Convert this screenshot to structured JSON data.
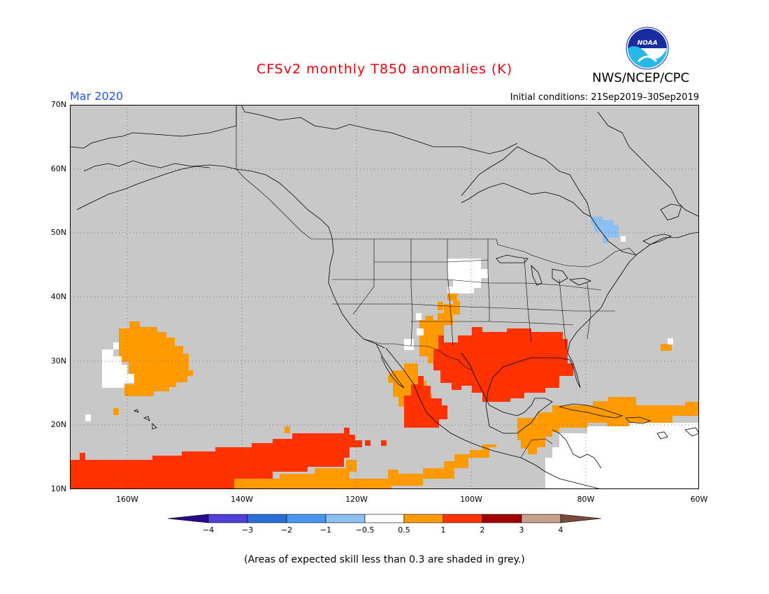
{
  "title": "CFSv2 monthly T850 anomalies (K)",
  "agency": "NWS/NCEP/CPC",
  "logo_text": "NOAA",
  "valid_month": "Mar 2020",
  "initial_conditions": "Initial conditions: 21Sep2019–30Sep2019",
  "footnote": "(Areas of expected skill less than 0.3 are shaded in grey.)",
  "lat_labels": [
    "70N",
    "60N",
    "50N",
    "40N",
    "30N",
    "20N",
    "10N"
  ],
  "lon_labels": [
    "160W",
    "140W",
    "120W",
    "100W",
    "80W",
    "60W"
  ],
  "colorbar": {
    "levels": [
      "−4",
      "−3",
      "−2",
      "−1",
      "−0.5",
      "0.5",
      "1",
      "2",
      "3",
      "4"
    ],
    "colors": [
      "#2a0a8a",
      "#5040d8",
      "#2a6ed8",
      "#4a96f0",
      "#8cc0f0",
      "#ffffff",
      "#ff9a00",
      "#ff3200",
      "#a00000",
      "#c8a090",
      "#7a4a3a"
    ]
  },
  "map": {
    "extent": {
      "lon_min": -172,
      "lon_max": -63,
      "lat_min": 10,
      "lat_max": 70
    },
    "skill_mask_color": "#c8c8c8",
    "anomaly_regions": [
      {
        "name": "north-pacific-warm",
        "class": "0.5 to 1"
      },
      {
        "name": "tropical-pacific-warm",
        "class": "1 to 2"
      },
      {
        "name": "southern-us-warm",
        "class": "1 to 2"
      },
      {
        "name": "mexico-warm",
        "class": "1 to 2"
      },
      {
        "name": "caribbean-warm",
        "class": "0.5 to 1"
      },
      {
        "name": "quebec-cool",
        "class": "-1 to -0.5"
      }
    ]
  }
}
